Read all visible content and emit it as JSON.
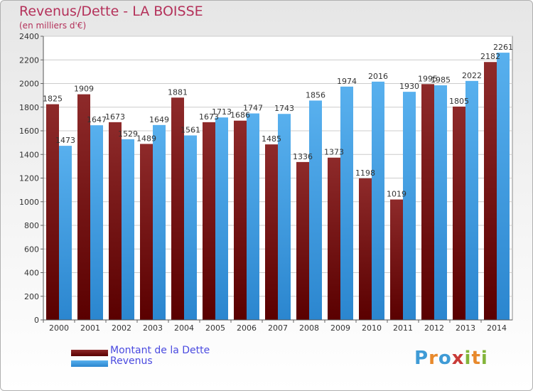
{
  "header": {
    "title": "Revenus/Dette - LA BOISSE",
    "subtitle": "(en milliers d'€)"
  },
  "legend": {
    "items": [
      {
        "label": "Montant de la Dette",
        "color": "#8b1a1a"
      },
      {
        "label": "Revenus",
        "color": "#4aa3e8"
      }
    ]
  },
  "logo": {
    "text": "Proxiti"
  },
  "colors": {
    "dette_top": "#8e2a2a",
    "dette_bottom": "#5a0000",
    "revenus_top": "#58b0ee",
    "revenus_bottom": "#2b86cf",
    "title": "#b4315a",
    "axis_text": "#333333"
  },
  "chart_data": {
    "type": "bar",
    "categories": [
      "2000",
      "2001",
      "2002",
      "2003",
      "2004",
      "2005",
      "2006",
      "2007",
      "2008",
      "2009",
      "2010",
      "2011",
      "2012",
      "2013",
      "2014"
    ],
    "series": [
      {
        "name": "Montant de la Dette",
        "values": [
          1825,
          1909,
          1673,
          1489,
          1881,
          1673,
          1686,
          1485,
          1336,
          1373,
          1198,
          1019,
          1995,
          1805,
          2182
        ]
      },
      {
        "name": "Revenus",
        "values": [
          1473,
          1647,
          1529,
          1649,
          1561,
          1713,
          1747,
          1743,
          1856,
          1974,
          2016,
          1930,
          1985,
          2022,
          2261
        ]
      }
    ],
    "title": "Revenus/Dette - LA BOISSE",
    "ylabel": "(en milliers d'€)",
    "ylim": [
      0,
      2400
    ],
    "yticks": [
      0,
      200,
      400,
      600,
      800,
      1000,
      1200,
      1400,
      1600,
      1800,
      2000,
      2200,
      2400
    ],
    "grid": true,
    "legend_position": "bottom-left"
  }
}
